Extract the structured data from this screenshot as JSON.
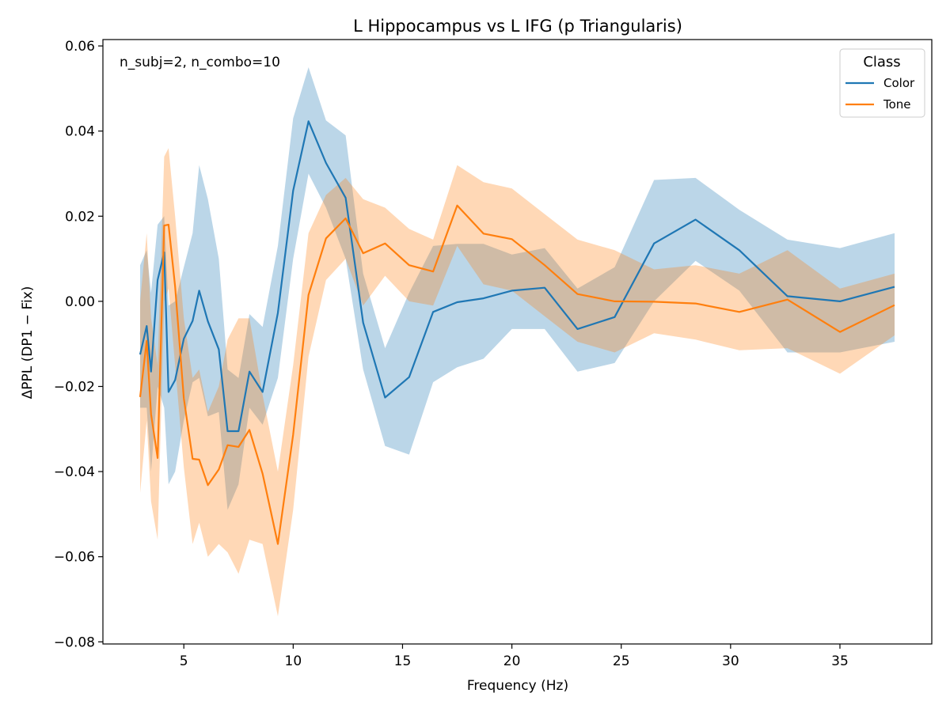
{
  "chart_data": {
    "type": "line",
    "title": "L Hippocampus vs L IFG (p Triangularis)",
    "xlabel": "Frequency (Hz)",
    "ylabel": "ΔPPL (DP1 − Fix)",
    "annotation": "n_subj=2, n_combo=10",
    "xlim": [
      1.3,
      39.2
    ],
    "ylim": [
      -0.0805,
      0.0615
    ],
    "xticks": [
      5,
      10,
      15,
      20,
      25,
      30,
      35
    ],
    "xtick_labels": [
      "5",
      "10",
      "15",
      "20",
      "25",
      "30",
      "35"
    ],
    "yticks": [
      -0.08,
      -0.06,
      -0.04,
      -0.02,
      0.0,
      0.02,
      0.04,
      0.06
    ],
    "ytick_labels": [
      "−0.08",
      "−0.06",
      "−0.04",
      "−0.02",
      "0.00",
      "0.02",
      "0.04",
      "0.06"
    ],
    "grid": false,
    "legend": {
      "title": "Class",
      "placement": "top-right"
    },
    "series": [
      {
        "name": "Color",
        "color": "#1f77b4",
        "x": [
          3.0,
          3.3,
          3.5,
          3.8,
          4.1,
          4.3,
          4.6,
          5.0,
          5.4,
          5.7,
          6.1,
          6.6,
          7.0,
          7.5,
          8.0,
          8.6,
          9.3,
          10.0,
          10.7,
          11.5,
          12.4,
          13.2,
          14.2,
          15.3,
          16.4,
          17.5,
          18.7,
          20.0,
          21.5,
          23.0,
          24.7,
          26.5,
          28.4,
          30.4,
          32.6,
          35.0,
          37.5
        ],
        "y": [
          -0.0125,
          -0.0058,
          -0.0165,
          0.005,
          0.0115,
          -0.0213,
          -0.0185,
          -0.0088,
          -0.0046,
          0.0025,
          -0.0047,
          -0.0113,
          -0.0305,
          -0.0305,
          -0.0165,
          -0.0213,
          -0.0027,
          0.026,
          0.0423,
          0.0325,
          0.0243,
          -0.005,
          -0.0226,
          -0.0178,
          -0.0025,
          -0.0002,
          0.0007,
          0.0025,
          0.0032,
          -0.0065,
          -0.0037,
          0.0136,
          0.0192,
          0.012,
          0.0012,
          0.0,
          0.0034
        ],
        "lower": [
          -0.025,
          -0.025,
          -0.04,
          -0.02,
          -0.025,
          -0.043,
          -0.04,
          -0.028,
          -0.019,
          -0.018,
          -0.027,
          -0.026,
          -0.049,
          -0.043,
          -0.025,
          -0.029,
          -0.018,
          0.01,
          0.03,
          0.022,
          0.01,
          -0.016,
          -0.034,
          -0.036,
          -0.019,
          -0.0155,
          -0.0135,
          -0.0065,
          -0.0065,
          -0.0165,
          -0.0145,
          0.0,
          0.0095,
          0.0025,
          -0.012,
          -0.012,
          -0.0095
        ],
        "upper": [
          0.0085,
          0.012,
          0.002,
          0.018,
          0.02,
          -0.001,
          0.0,
          0.008,
          0.016,
          0.032,
          0.024,
          0.01,
          -0.016,
          -0.018,
          -0.003,
          -0.006,
          0.013,
          0.043,
          0.055,
          0.0425,
          0.039,
          0.0065,
          -0.011,
          0.002,
          0.013,
          0.0135,
          0.0135,
          0.011,
          0.0125,
          0.003,
          0.008,
          0.0285,
          0.029,
          0.0215,
          0.0145,
          0.0125,
          0.016
        ]
      },
      {
        "name": "Tone",
        "color": "#ff7f0e",
        "x": [
          3.0,
          3.3,
          3.5,
          3.8,
          4.1,
          4.3,
          4.6,
          5.0,
          5.4,
          5.7,
          6.1,
          6.6,
          7.0,
          7.5,
          8.0,
          8.6,
          9.3,
          10.0,
          10.7,
          11.5,
          12.4,
          13.2,
          14.2,
          15.3,
          16.4,
          17.5,
          18.7,
          20.0,
          21.5,
          23.0,
          24.7,
          26.5,
          28.4,
          30.4,
          32.6,
          35.0,
          37.5
        ],
        "y": [
          -0.0225,
          -0.0093,
          -0.0265,
          -0.0368,
          0.0178,
          0.018,
          0.0035,
          -0.0228,
          -0.037,
          -0.0372,
          -0.0432,
          -0.0395,
          -0.0338,
          -0.0342,
          -0.0302,
          -0.0405,
          -0.057,
          -0.0313,
          0.0015,
          0.0148,
          0.0195,
          0.0113,
          0.0136,
          0.0085,
          0.007,
          0.0225,
          0.0159,
          0.0146,
          0.0085,
          0.0017,
          0.0,
          -0.0001,
          -0.0005,
          -0.0025,
          0.0004,
          -0.0072,
          -0.0009
        ],
        "lower": [
          -0.045,
          -0.028,
          -0.047,
          -0.056,
          0.0,
          0.003,
          -0.015,
          -0.039,
          -0.057,
          -0.052,
          -0.06,
          -0.057,
          -0.059,
          -0.064,
          -0.056,
          -0.057,
          -0.074,
          -0.049,
          -0.013,
          0.005,
          0.01,
          -0.001,
          0.006,
          0.0,
          -0.001,
          0.013,
          0.004,
          0.0025,
          -0.0035,
          -0.0095,
          -0.012,
          -0.0075,
          -0.009,
          -0.0115,
          -0.011,
          -0.017,
          -0.008
        ],
        "upper": [
          0.0,
          0.016,
          -0.004,
          -0.015,
          0.034,
          0.036,
          0.02,
          -0.004,
          -0.018,
          -0.016,
          -0.026,
          -0.02,
          -0.009,
          -0.004,
          -0.004,
          -0.022,
          -0.04,
          -0.015,
          0.016,
          0.025,
          0.029,
          0.024,
          0.022,
          0.017,
          0.0145,
          0.032,
          0.028,
          0.0265,
          0.0205,
          0.0145,
          0.012,
          0.0075,
          0.0085,
          0.0065,
          0.012,
          0.003,
          0.0065
        ]
      }
    ]
  }
}
